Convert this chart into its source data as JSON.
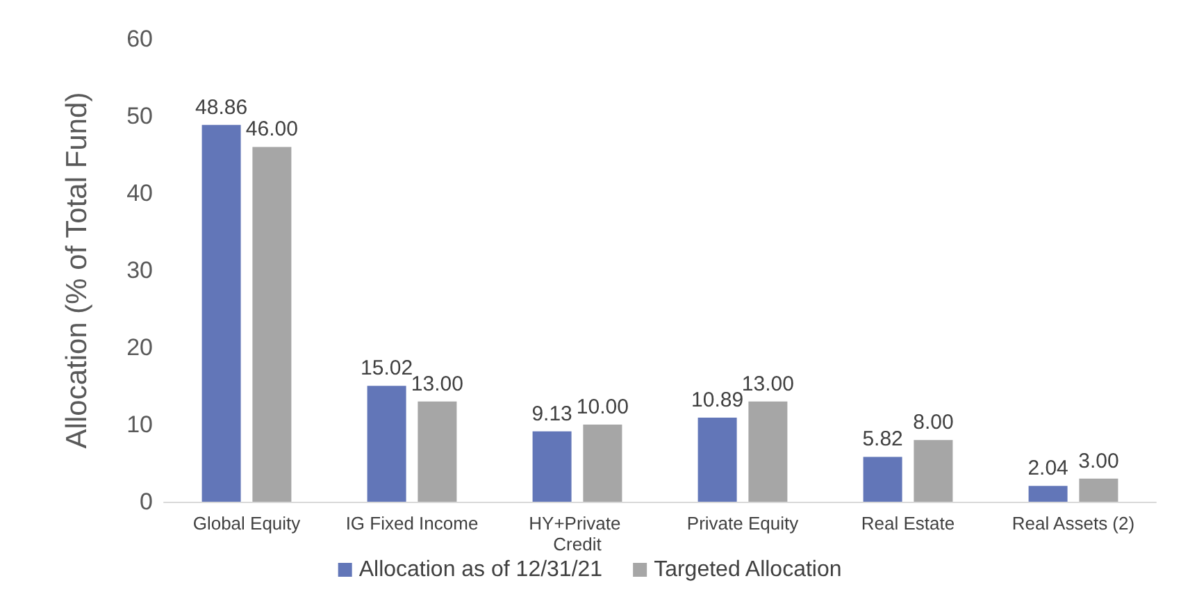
{
  "chart_data": {
    "type": "bar",
    "ylabel": "Allocation (% of Total Fund)",
    "categories": [
      "Global Equity",
      "IG Fixed Income",
      "HY+Private Credit",
      "Private Equity",
      "Real Estate",
      "Real Assets (2)"
    ],
    "series": [
      {
        "name": "Allocation as of 12/31/21",
        "color": "#6276b8",
        "values": [
          48.86,
          15.02,
          9.13,
          10.89,
          5.82,
          2.04
        ]
      },
      {
        "name": "Targeted Allocation",
        "color": "#a6a6a6",
        "values": [
          46.0,
          13.0,
          10.0,
          13.0,
          8.0,
          3.0
        ]
      }
    ],
    "value_labels": [
      [
        "48.86",
        "15.02",
        "9.13",
        "10.89",
        "5.82",
        "2.04"
      ],
      [
        "46.00",
        "13.00",
        "10.00",
        "13.00",
        "8.00",
        "3.00"
      ]
    ],
    "ylim": [
      0,
      60
    ],
    "yticks": [
      0,
      10,
      20,
      30,
      40,
      50,
      60
    ],
    "grid": false,
    "legend": "bottom"
  }
}
